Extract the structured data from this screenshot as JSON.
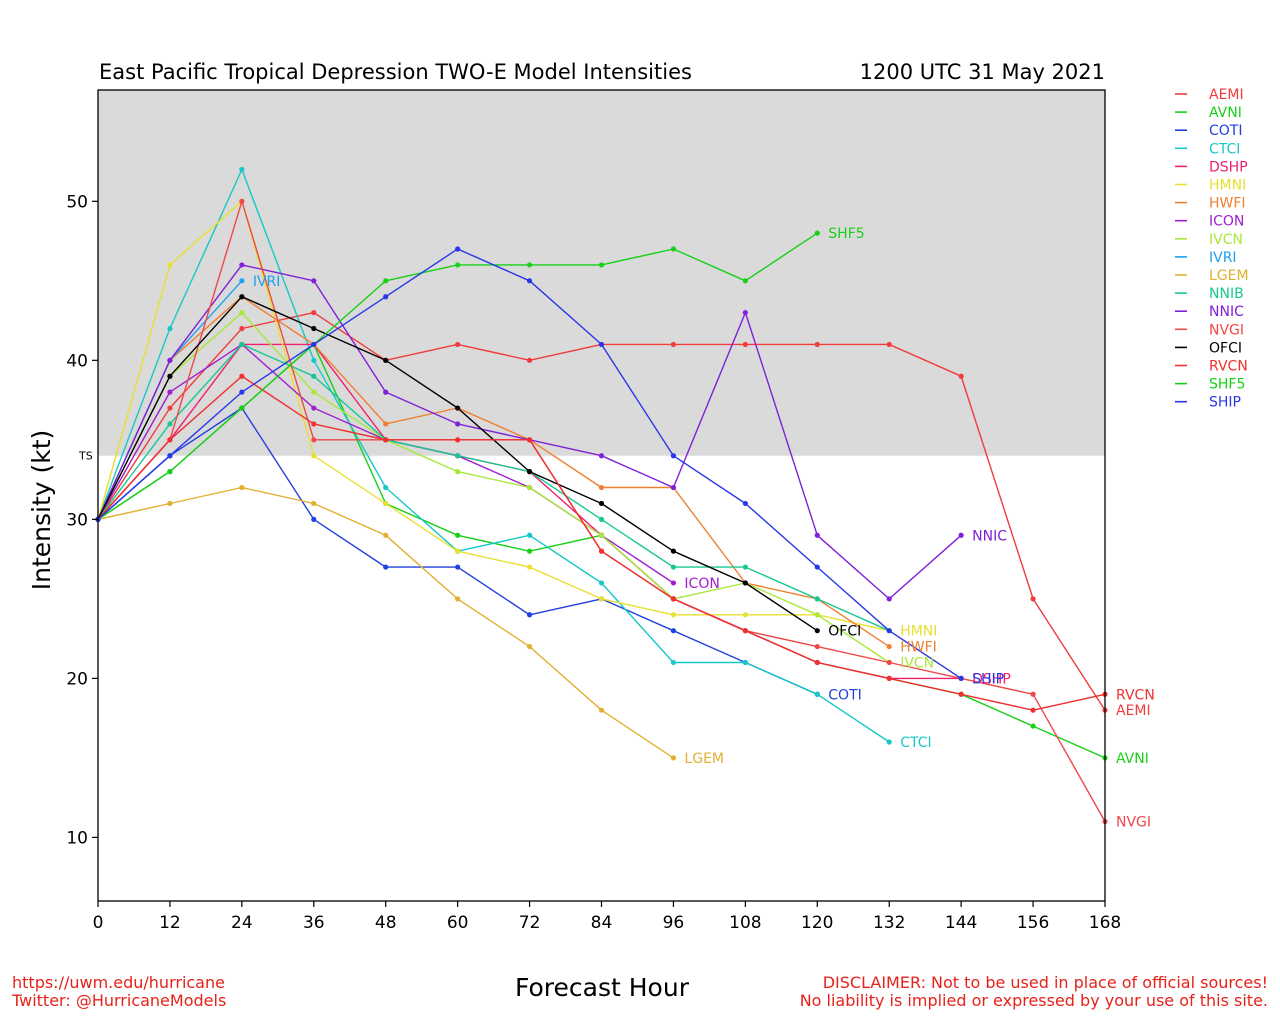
{
  "header": {
    "title": "East Pacific Tropical Depression TWO-E Model Intensities",
    "datetime": "1200 UTC 31 May 2021"
  },
  "footer": {
    "url": "https://uwm.edu/hurricane",
    "twitter": "Twitter: @HurricaneModels",
    "disclaimer_1": "DISCLAIMER: Not to be used in place of official sources!",
    "disclaimer_2": "No liability is implied or expressed by your use of this site."
  },
  "chart_data": {
    "type": "line",
    "title": "East Pacific Tropical Depression TWO-E Model Intensities",
    "subtitle": "1200 UTC 31 May 2021",
    "xlabel": "Forecast Hour",
    "ylabel": "Intensity (kt)",
    "xlim": [
      0,
      168
    ],
    "ylim": [
      6,
      57
    ],
    "xticks": [
      0,
      12,
      24,
      36,
      48,
      60,
      72,
      84,
      96,
      108,
      120,
      132,
      144,
      156,
      168
    ],
    "yticks": [
      10,
      20,
      30,
      40,
      50
    ],
    "threshold": {
      "label": "TS",
      "value": 34,
      "shade_color": "#dadada"
    },
    "legend_position": "right outside",
    "series": [
      {
        "name": "AEMI",
        "color": "#f03c3c",
        "end_label": true,
        "x": [
          0,
          12,
          24,
          36,
          48,
          60,
          72,
          84,
          96,
          108,
          120,
          132,
          144,
          156,
          168
        ],
        "y": [
          30,
          37,
          42,
          43,
          40,
          41,
          40,
          41,
          41,
          41,
          41,
          41,
          39,
          25,
          18
        ]
      },
      {
        "name": "AVNI",
        "color": "#18d018",
        "end_label": true,
        "x": [
          0,
          12,
          24,
          36,
          48,
          60,
          72,
          84,
          96,
          108,
          120,
          132,
          144,
          156,
          168
        ],
        "y": [
          30,
          33,
          37,
          41,
          31,
          29,
          28,
          29,
          25,
          23,
          21,
          20,
          19,
          17,
          15
        ]
      },
      {
        "name": "COTI",
        "color": "#2040e0",
        "end_label": true,
        "x": [
          0,
          12,
          24,
          36,
          48,
          60,
          72,
          84,
          96,
          108,
          120
        ],
        "y": [
          30,
          34,
          37,
          30,
          27,
          27,
          24,
          25,
          23,
          21,
          19
        ]
      },
      {
        "name": "CTCI",
        "color": "#18c8c8",
        "end_label": true,
        "x": [
          0,
          12,
          24,
          36,
          48,
          60,
          72,
          84,
          96,
          108,
          120,
          132
        ],
        "y": [
          30,
          42,
          52,
          40,
          32,
          28,
          29,
          26,
          21,
          21,
          19,
          16
        ]
      },
      {
        "name": "DSHP",
        "color": "#f02070",
        "end_label": true,
        "x": [
          0,
          12,
          24,
          36,
          48,
          60,
          72,
          84,
          96,
          108,
          120,
          132,
          144
        ],
        "y": [
          30,
          35,
          41,
          41,
          35,
          34,
          33,
          29,
          25,
          23,
          21,
          20,
          20
        ]
      },
      {
        "name": "HMNI",
        "color": "#e8e030",
        "end_label": true,
        "x": [
          0,
          12,
          24,
          36,
          48,
          60,
          72,
          84,
          96,
          108,
          120,
          132
        ],
        "y": [
          30,
          46,
          50,
          34,
          31,
          28,
          27,
          25,
          24,
          24,
          24,
          23
        ]
      },
      {
        "name": "HWFI",
        "color": "#f08030",
        "end_label": true,
        "x": [
          0,
          12,
          24,
          36,
          48,
          60,
          72,
          84,
          96,
          108,
          120,
          132
        ],
        "y": [
          30,
          40,
          44,
          41,
          36,
          37,
          35,
          32,
          32,
          26,
          25,
          22
        ]
      },
      {
        "name": "ICON",
        "color": "#a020d0",
        "end_label": true,
        "x": [
          0,
          12,
          24,
          36,
          48,
          60,
          72,
          84,
          96
        ],
        "y": [
          30,
          38,
          41,
          37,
          35,
          34,
          32,
          29,
          26
        ]
      },
      {
        "name": "IVCN",
        "color": "#a8e838",
        "end_label": true,
        "x": [
          0,
          12,
          24,
          36,
          48,
          60,
          72,
          84,
          96,
          108,
          120,
          132
        ],
        "y": [
          30,
          39,
          43,
          38,
          35,
          33,
          32,
          29,
          25,
          26,
          24,
          21
        ]
      },
      {
        "name": "IVRI",
        "color": "#1ea0f0",
        "end_label": true,
        "x": [
          0,
          12,
          24
        ],
        "y": [
          30,
          40,
          45
        ]
      },
      {
        "name": "LGEM",
        "color": "#e0b030",
        "end_label": true,
        "x": [
          0,
          12,
          24,
          36,
          48,
          60,
          72,
          84,
          96
        ],
        "y": [
          30,
          31,
          32,
          31,
          29,
          25,
          22,
          18,
          15
        ]
      },
      {
        "name": "NNIB",
        "color": "#18c890",
        "end_label": false,
        "x": [
          0,
          12,
          24,
          36,
          48,
          60,
          72,
          84,
          96,
          108,
          120,
          132
        ],
        "y": [
          30,
          36,
          41,
          39,
          35,
          34,
          33,
          30,
          27,
          27,
          25,
          23
        ]
      },
      {
        "name": "NNIC",
        "color": "#8020d8",
        "end_label": true,
        "x": [
          0,
          12,
          24,
          36,
          48,
          60,
          72,
          84,
          96,
          108,
          120,
          132,
          144
        ],
        "y": [
          30,
          40,
          46,
          45,
          38,
          36,
          35,
          34,
          32,
          43,
          29,
          25,
          29
        ]
      },
      {
        "name": "NVGI",
        "color": "#f04848",
        "end_label": true,
        "x": [
          0,
          12,
          24,
          36,
          48,
          60,
          72,
          84,
          96,
          108,
          120,
          132,
          144,
          156,
          168
        ],
        "y": [
          30,
          35,
          50,
          35,
          35,
          35,
          35,
          28,
          25,
          23,
          22,
          21,
          20,
          19,
          11
        ]
      },
      {
        "name": "OFCI",
        "color": "#000000",
        "end_label": true,
        "x": [
          0,
          12,
          24,
          36,
          48,
          60,
          72,
          84,
          96,
          108,
          120
        ],
        "y": [
          30,
          39,
          44,
          42,
          40,
          37,
          33,
          31,
          28,
          26,
          23
        ]
      },
      {
        "name": "RVCN",
        "color": "#f03030",
        "end_label": true,
        "x": [
          0,
          12,
          24,
          36,
          48,
          60,
          72,
          84,
          96,
          108,
          120,
          132,
          144,
          156,
          168
        ],
        "y": [
          30,
          35,
          39,
          36,
          35,
          35,
          35,
          28,
          25,
          23,
          21,
          20,
          19,
          18,
          19
        ]
      },
      {
        "name": "SHF5",
        "color": "#18d018",
        "end_label": true,
        "x": [
          0,
          12,
          24,
          36,
          48,
          60,
          72,
          84,
          96,
          108,
          120
        ],
        "y": [
          30,
          33,
          37,
          41,
          45,
          46,
          46,
          46,
          47,
          45,
          48
        ]
      },
      {
        "name": "SHIP",
        "color": "#2838e8",
        "end_label": true,
        "x": [
          0,
          12,
          24,
          36,
          48,
          60,
          72,
          84,
          96,
          108,
          120,
          132,
          144
        ],
        "y": [
          30,
          34,
          38,
          41,
          44,
          47,
          45,
          41,
          34,
          31,
          27,
          23,
          20
        ]
      }
    ]
  }
}
